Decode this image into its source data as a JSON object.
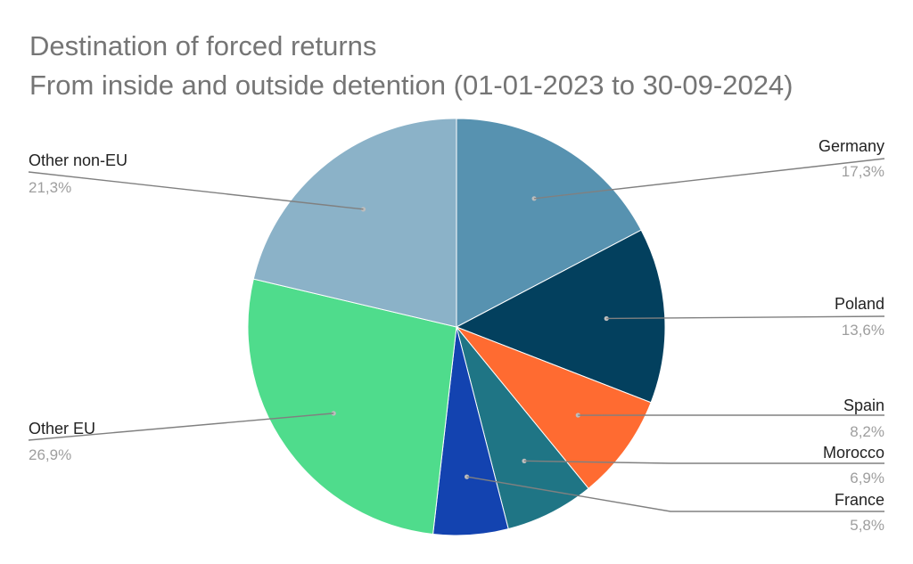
{
  "chart_data": {
    "type": "pie",
    "title": "Destination of forced returns",
    "subtitle": "From inside and outside detention (01-01-2023 to 30-09-2024)",
    "slices": [
      {
        "label": "Germany",
        "value_label": "17,3%",
        "value": 17.3,
        "color": "#5792b0"
      },
      {
        "label": "Poland",
        "value_label": "13,6%",
        "value": 13.6,
        "color": "#03405e"
      },
      {
        "label": "Spain",
        "value_label": "8,2%",
        "value": 8.2,
        "color": "#ff6b31"
      },
      {
        "label": "Morocco",
        "value_label": "6,9%",
        "value": 6.9,
        "color": "#1f7585"
      },
      {
        "label": "France",
        "value_label": "5,8%",
        "value": 5.8,
        "color": "#1343b0"
      },
      {
        "label": "Other EU",
        "value_label": "26,9%",
        "value": 26.9,
        "color": "#4fdc8c"
      },
      {
        "label": "Other non-EU",
        "value_label": "21,3%",
        "value": 21.3,
        "color": "#8bb2c8"
      }
    ],
    "start": "12 o'clock",
    "direction": "clockwise",
    "legend": "none",
    "label_line_color": "#808080",
    "divider_color": "#ffffff"
  }
}
